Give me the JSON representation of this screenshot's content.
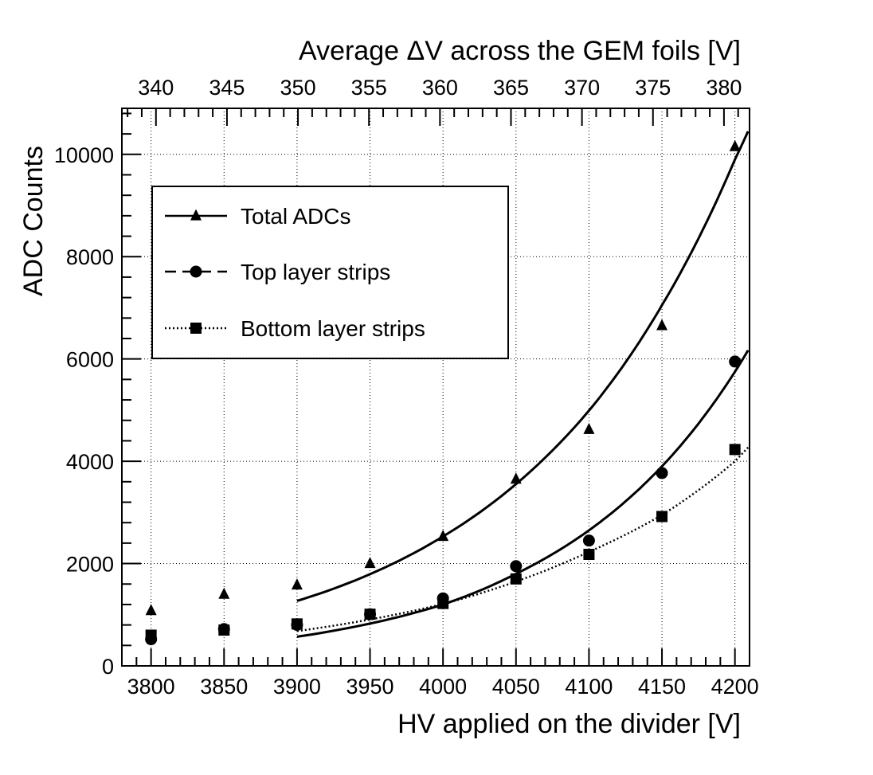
{
  "chart_data": {
    "type": "scatter",
    "title": "",
    "xlabel": "HV applied on the divider [V]",
    "x2label": "Average ΔV across the GEM foils [V]",
    "ylabel": "ADC Counts",
    "xlim": [
      3780,
      4210
    ],
    "ylim": [
      0,
      10900
    ],
    "x2lim": [
      337.6,
      381.8
    ],
    "xticks": [
      3800,
      3850,
      3900,
      3950,
      4000,
      4050,
      4100,
      4150,
      4200
    ],
    "x2ticks": [
      340,
      345,
      350,
      355,
      360,
      365,
      370,
      375,
      380
    ],
    "yticks": [
      0,
      2000,
      4000,
      6000,
      8000,
      10000
    ],
    "grid": true,
    "legend_position": "top-left",
    "x": [
      3800,
      3850,
      3900,
      3950,
      4000,
      4050,
      4100,
      4150,
      4200
    ],
    "series": [
      {
        "name": "Total ADCs",
        "marker": "triangle",
        "line_style": "solid",
        "values": [
          1080,
          1400,
          1580,
          2000,
          2530,
          3650,
          4620,
          6650,
          10150
        ],
        "fit": {
          "x_range": [
            3900,
            4209
          ],
          "points": [
            [
              3900,
              1270
            ],
            [
              4000,
              2530
            ],
            [
              4100,
              4990
            ],
            [
              4150,
              7050
            ],
            [
              4200,
              9900
            ],
            [
              4209,
              10450
            ]
          ]
        }
      },
      {
        "name": "Top layer strips",
        "marker": "circle",
        "line_style": "dashed",
        "values": [
          520,
          720,
          800,
          1010,
          1320,
          1950,
          2450,
          3770,
          5950
        ],
        "fit": {
          "x_range": [
            3900,
            4209
          ],
          "points": [
            [
              3900,
              570
            ],
            [
              4000,
              1200
            ],
            [
              4050,
              1800
            ],
            [
              4100,
              2650
            ],
            [
              4150,
              3900
            ],
            [
              4200,
              5750
            ],
            [
              4209,
              6170
            ]
          ]
        }
      },
      {
        "name": "Bottom layer strips",
        "marker": "square",
        "line_style": "dotted",
        "values": [
          600,
          700,
          820,
          1010,
          1220,
          1700,
          2180,
          2920,
          4230
        ],
        "fit": {
          "x_range": [
            3900,
            4209
          ],
          "points": [
            [
              3900,
              680
            ],
            [
              4000,
              1210
            ],
            [
              4050,
              1650
            ],
            [
              4100,
              2230
            ],
            [
              4150,
              2950
            ],
            [
              4200,
              4000
            ],
            [
              4209,
              4270
            ]
          ]
        }
      }
    ]
  }
}
